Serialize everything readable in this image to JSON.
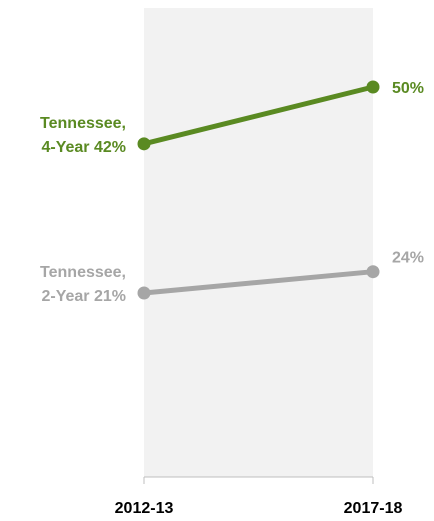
{
  "chart_data": {
    "type": "line",
    "x": [
      "2012-13",
      "2017-18"
    ],
    "ylim": [
      0,
      60
    ],
    "grid": false,
    "legend": "none",
    "series": [
      {
        "name_line1": "Tennessee,",
        "name_line2": "4-Year",
        "values": [
          42,
          50
        ],
        "labels": [
          "42%",
          "50%"
        ],
        "color": "#5a8a22"
      },
      {
        "name_line1": "Tennessee,",
        "name_line2": "2-Year",
        "values": [
          21,
          24
        ],
        "labels": [
          "21%",
          "24%"
        ],
        "color": "#a6a6a6"
      }
    ],
    "background_band_color": "#f2f2f2",
    "axis_color": "#bfbfbf",
    "tick_label_color": "#000000"
  }
}
